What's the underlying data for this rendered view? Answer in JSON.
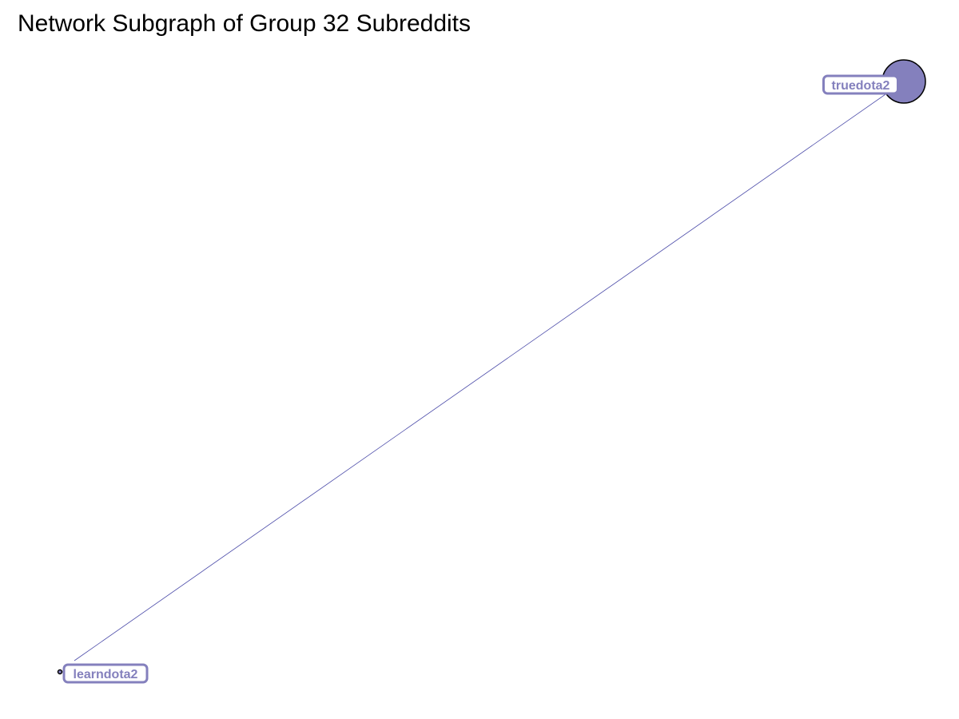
{
  "title": "Network Subgraph of Group 32 Subreddits",
  "colors": {
    "node_fill": "#8480bd",
    "node_stroke": "#000000",
    "edge": "#4a4aa8",
    "label_text": "#8480bd",
    "label_border": "#8480bd",
    "label_fill": "#ffffff",
    "background": "#ffffff"
  },
  "graph": {
    "nodes": [
      {
        "id": "truedota2",
        "label": "truedota2",
        "size": "large"
      },
      {
        "id": "learndota2",
        "label": "learndota2",
        "size": "tiny"
      }
    ],
    "edges": [
      {
        "source": "truedota2",
        "target": "learndota2"
      }
    ]
  }
}
